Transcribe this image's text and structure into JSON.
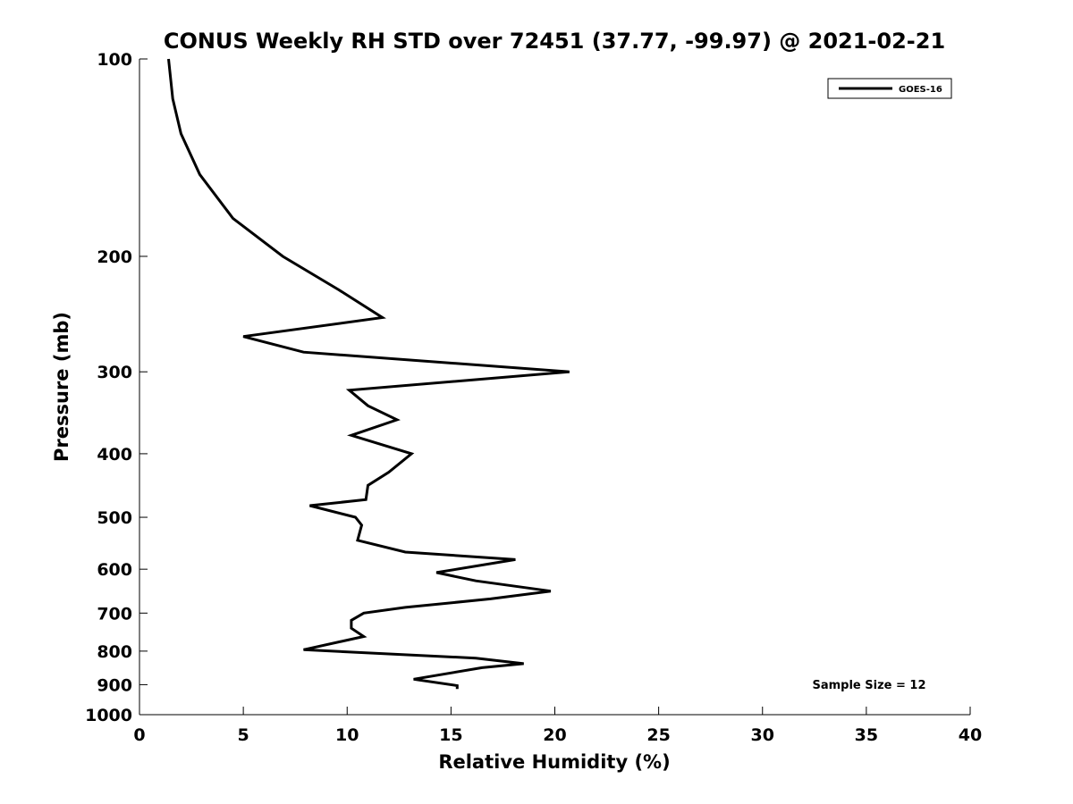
{
  "chart_data": {
    "type": "line",
    "title": "CONUS Weekly RH STD over 72451 (37.77, -99.97) @ 2021-02-21",
    "xlabel": "Relative Humidity (%)",
    "ylabel": "Pressure (mb)",
    "xlim": [
      0,
      40
    ],
    "ylim": [
      100,
      1000
    ],
    "y_scale": "log",
    "y_reversed": true,
    "xticks": [
      0,
      5,
      10,
      15,
      20,
      25,
      30,
      35,
      40
    ],
    "xtick_labels": [
      "0",
      "5",
      "10",
      "15",
      "20",
      "25",
      "30",
      "35",
      "40"
    ],
    "yticks": [
      100,
      200,
      300,
      400,
      500,
      600,
      700,
      800,
      900,
      1000
    ],
    "ytick_labels": [
      "100",
      "200",
      "300",
      "400",
      "500",
      "600",
      "700",
      "800",
      "900",
      "1000"
    ],
    "grid": false,
    "legend_position": "top-right",
    "series": [
      {
        "name": "GOES-16",
        "color": "#000000",
        "points": [
          [
            1.4,
            100
          ],
          [
            1.6,
            115
          ],
          [
            2.0,
            130
          ],
          [
            2.9,
            150
          ],
          [
            4.5,
            175
          ],
          [
            6.9,
            200
          ],
          [
            9.6,
            225
          ],
          [
            11.7,
            248
          ],
          [
            5.0,
            265
          ],
          [
            7.9,
            280
          ],
          [
            20.7,
            300
          ],
          [
            10.1,
            320
          ],
          [
            11.0,
            338
          ],
          [
            12.4,
            355
          ],
          [
            10.2,
            375
          ],
          [
            13.1,
            400
          ],
          [
            12.0,
            427
          ],
          [
            11.0,
            447
          ],
          [
            10.9,
            470
          ],
          [
            8.2,
            480
          ],
          [
            10.4,
            500
          ],
          [
            10.7,
            514
          ],
          [
            10.5,
            542
          ],
          [
            12.8,
            565
          ],
          [
            18.1,
            580
          ],
          [
            14.3,
            607
          ],
          [
            16.2,
            625
          ],
          [
            19.8,
            648
          ],
          [
            16.9,
            666
          ],
          [
            12.8,
            686
          ],
          [
            10.8,
            700
          ],
          [
            10.2,
            718
          ],
          [
            10.2,
            738
          ],
          [
            10.8,
            760
          ],
          [
            7.9,
            796
          ],
          [
            16.2,
            820
          ],
          [
            18.5,
            836
          ],
          [
            16.5,
            848
          ],
          [
            13.2,
            883
          ],
          [
            15.3,
            903
          ],
          [
            15.3,
            914
          ]
        ]
      }
    ],
    "annotations": [
      {
        "text": "Sample Size = 12"
      }
    ]
  }
}
